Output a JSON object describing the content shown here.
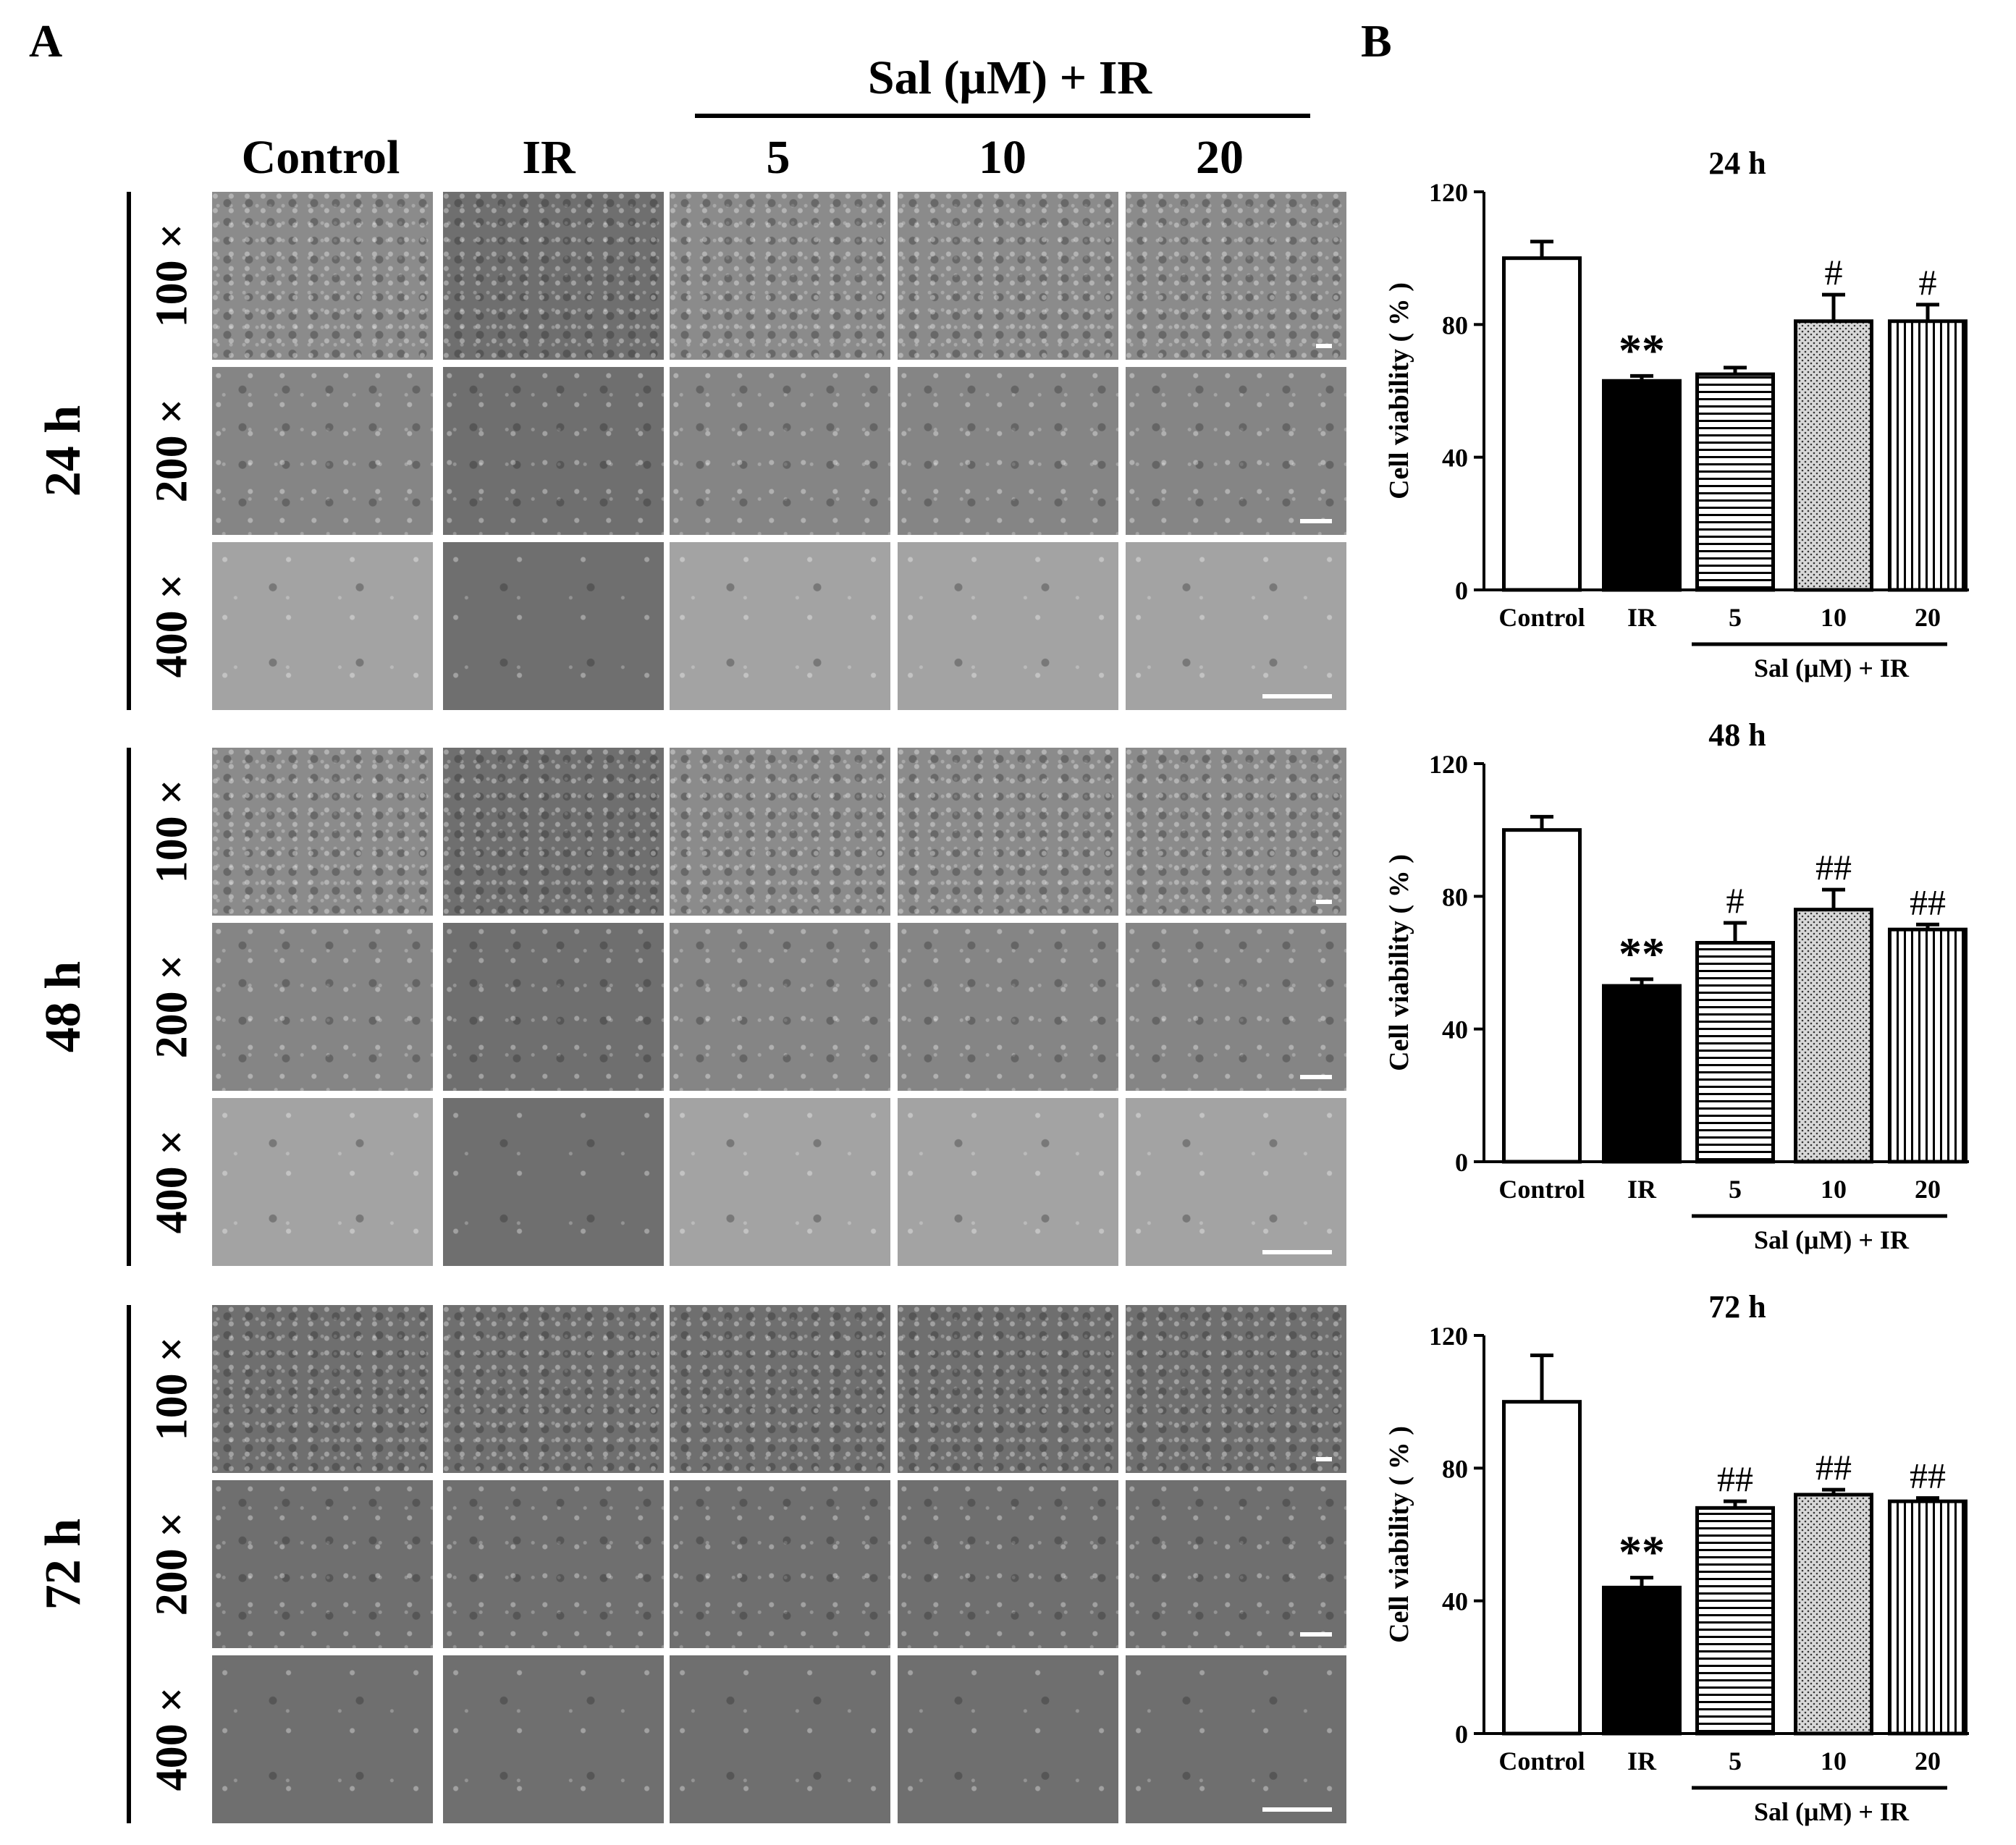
{
  "panels": {
    "a": "A",
    "b": "B"
  },
  "columns": [
    "Control",
    "IR",
    "5",
    "10",
    "20"
  ],
  "group_label": "Sal (μM) + IR",
  "rows": [
    {
      "time": "24 h",
      "mags": [
        "100 ×",
        "200 ×",
        "400 ×"
      ]
    },
    {
      "time": "48 h",
      "mags": [
        "100 ×",
        "200 ×",
        "400 ×"
      ]
    },
    {
      "time": "72 h",
      "mags": [
        "100 ×",
        "200 ×",
        "400 ×"
      ]
    }
  ],
  "chart_data": [
    {
      "type": "bar",
      "title": "24 h",
      "ylabel": "Cell viability ( % )",
      "xlabel": "",
      "categories": [
        "Control",
        "IR",
        "5",
        "10",
        "20"
      ],
      "group_label": "Sal (μM) + IR",
      "values": [
        100,
        63,
        65,
        81,
        81
      ],
      "errors": [
        5,
        1.5,
        2,
        8,
        5
      ],
      "annotations": [
        "",
        "**",
        "",
        "#",
        "#"
      ],
      "ylim": [
        0,
        120
      ],
      "yticks": [
        "0",
        "40",
        "80",
        "120"
      ]
    },
    {
      "type": "bar",
      "title": "48 h",
      "ylabel": "Cell viability ( % )",
      "xlabel": "",
      "categories": [
        "Control",
        "IR",
        "5",
        "10",
        "20"
      ],
      "group_label": "Sal (μM) + IR",
      "values": [
        100,
        53,
        66,
        76,
        70
      ],
      "errors": [
        4,
        2,
        6,
        6,
        1.5
      ],
      "annotations": [
        "",
        "**",
        "#",
        "##",
        "##"
      ],
      "ylim": [
        0,
        120
      ],
      "yticks": [
        "0",
        "40",
        "80",
        "120"
      ]
    },
    {
      "type": "bar",
      "title": "72 h",
      "ylabel": "Cell viability ( % )",
      "xlabel": "",
      "categories": [
        "Control",
        "IR",
        "5",
        "10",
        "20"
      ],
      "group_label": "Sal (μM) + IR",
      "values": [
        100,
        44,
        68,
        72,
        70
      ],
      "errors": [
        14,
        3,
        2,
        1.5,
        1
      ],
      "annotations": [
        "",
        "**",
        "##",
        "##",
        "##"
      ],
      "ylim": [
        0,
        120
      ],
      "yticks": [
        "0",
        "40",
        "80",
        "120"
      ]
    }
  ]
}
